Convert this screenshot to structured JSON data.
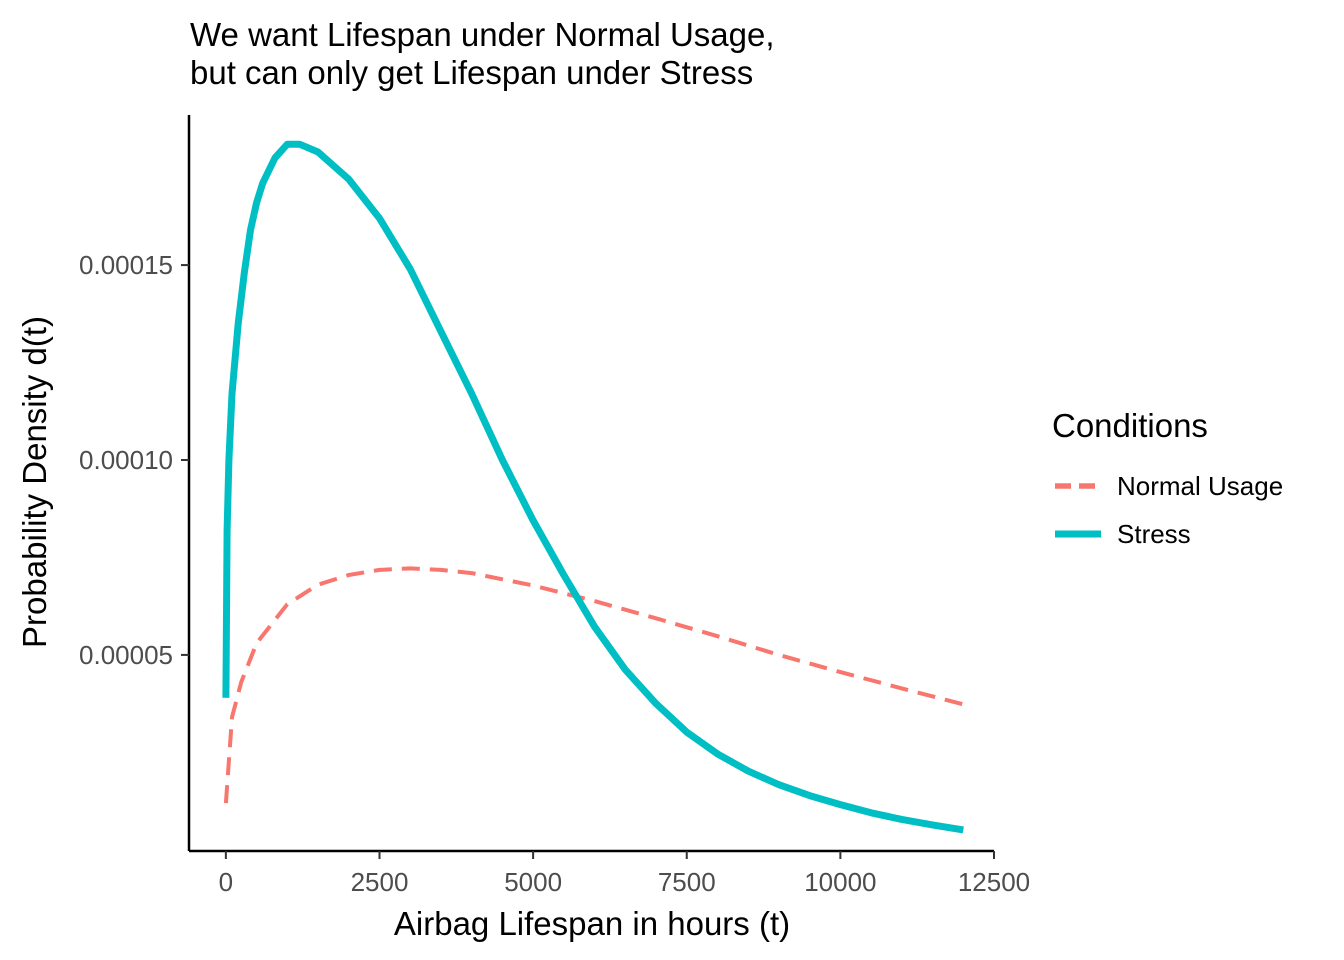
{
  "chart_data": {
    "type": "line",
    "title": [
      "We want Lifespan under Normal Usage,",
      "but can only get Lifespan under Stress"
    ],
    "xlabel": "Airbag Lifespan in hours (t)",
    "ylabel": "Probability Density d(t)",
    "xlim": [
      -600,
      12500
    ],
    "ylim": [
      -3e-07,
      0.0001885
    ],
    "x_ticks": [
      0,
      2500,
      5000,
      7500,
      10000,
      12500
    ],
    "x_tick_labels": [
      "0",
      "2500",
      "5000",
      "7500",
      "10000",
      "12500"
    ],
    "y_ticks": [
      5e-05,
      0.0001,
      0.00015
    ],
    "y_tick_labels": [
      "0.00005",
      "0.00010",
      "0.00015"
    ],
    "grid": false,
    "legend": {
      "title": "Conditions",
      "placement": "right"
    },
    "series": [
      {
        "name": "Normal Usage",
        "color": "#F8766D",
        "dash": "dashed",
        "x": [
          0,
          100,
          250,
          500,
          1000,
          1500,
          2000,
          2500,
          3000,
          3500,
          4000,
          5000,
          6000,
          7000,
          8000,
          9000,
          10000,
          11000,
          12000
        ],
        "y": [
          1.2e-05,
          3.4e-05,
          4.3e-05,
          5.3e-05,
          6.3e-05,
          6.8e-05,
          7.05e-05,
          7.18e-05,
          7.22e-05,
          7.18e-05,
          7.1e-05,
          6.78e-05,
          6.38e-05,
          5.94e-05,
          5.48e-05,
          5e-05,
          4.56e-05,
          4.14e-05,
          3.73e-05
        ]
      },
      {
        "name": "Stress",
        "color": "#00BFC4",
        "dash": "solid",
        "x": [
          0,
          20,
          50,
          100,
          200,
          300,
          400,
          500,
          600,
          800,
          1000,
          1200,
          1500,
          2000,
          2500,
          3000,
          3500,
          4000,
          4500,
          5000,
          5500,
          6000,
          6500,
          7000,
          7500,
          8000,
          8500,
          9000,
          9500,
          10000,
          10500,
          11000,
          11500,
          12000
        ],
        "y": [
          3.9e-05,
          8.2e-05,
          0.0001,
          0.000117,
          0.000135,
          0.000148,
          0.000159,
          0.000166,
          0.000171,
          0.0001775,
          0.000181,
          0.000181,
          0.000179,
          0.000172,
          0.000162,
          0.000149,
          0.000133,
          0.000117,
          0.0001,
          8.45e-05,
          7.05e-05,
          5.72e-05,
          4.62e-05,
          3.75e-05,
          3.02e-05,
          2.46e-05,
          2.02e-05,
          1.67e-05,
          1.39e-05,
          1.16e-05,
          9.5e-06,
          7.8e-06,
          6.4e-06,
          5.1e-06
        ]
      }
    ]
  }
}
